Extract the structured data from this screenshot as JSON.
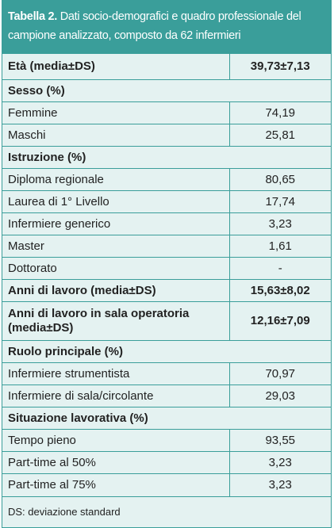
{
  "header": {
    "label": "Tabella 2.",
    "title": "Dati socio-demografici e quadro professionale del campione analizzato, composto da 62 infermieri"
  },
  "table": {
    "rows": [
      {
        "cells": [
          "Età (media±DS)",
          "39,73±7,13"
        ],
        "bold": true
      },
      {
        "cells": [
          "Sesso (%)"
        ],
        "bold": true
      },
      {
        "cells": [
          "Femmine",
          "74,19"
        ],
        "bold": false
      },
      {
        "cells": [
          "Maschi",
          "25,81"
        ],
        "bold": false
      },
      {
        "cells": [
          "Istruzione (%)"
        ],
        "bold": true
      },
      {
        "cells": [
          "Diploma regionale",
          "80,65"
        ],
        "bold": false
      },
      {
        "cells": [
          "Laurea di 1° Livello",
          "17,74"
        ],
        "bold": false
      },
      {
        "cells": [
          "Infermiere generico",
          "3,23"
        ],
        "bold": false
      },
      {
        "cells": [
          "Master",
          "1,61"
        ],
        "bold": false
      },
      {
        "cells": [
          "Dottorato",
          "-"
        ],
        "bold": false
      },
      {
        "cells": [
          "Anni di lavoro (media±DS)",
          "15,63±8,02"
        ],
        "bold": true
      },
      {
        "cells": [
          "Anni di lavoro in sala operatoria (media±DS)",
          "12,16±7,09"
        ],
        "bold": true
      },
      {
        "cells": [
          "Ruolo principale (%)"
        ],
        "bold": true
      },
      {
        "cells": [
          "Infermiere strumentista",
          "70,97"
        ],
        "bold": false
      },
      {
        "cells": [
          "Infermiere di sala/circolante",
          "29,03"
        ],
        "bold": false
      },
      {
        "cells": [
          "Situazione lavorativa (%)"
        ],
        "bold": true
      },
      {
        "cells": [
          "Tempo pieno",
          "93,55"
        ],
        "bold": false
      },
      {
        "cells": [
          "Part-time al 50%",
          "3,23"
        ],
        "bold": false
      },
      {
        "cells": [
          "Part-time al 75%",
          "3,23"
        ],
        "bold": false
      }
    ],
    "note": "DS: deviazione standard"
  }
}
